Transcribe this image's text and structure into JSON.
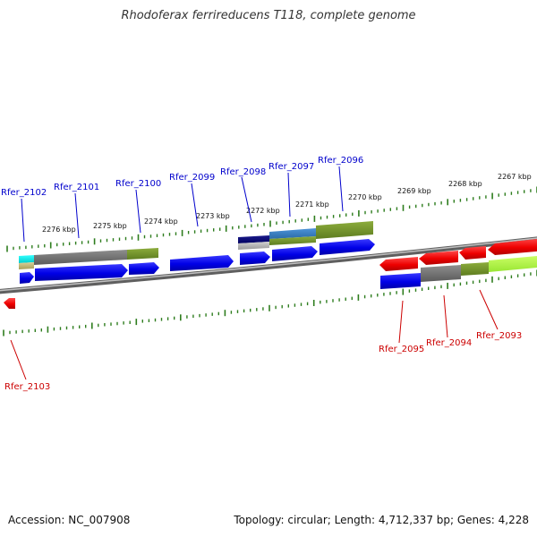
{
  "title": "Rhodoferax ferrireducens T118, complete genome",
  "footer": {
    "accession": "Accession: NC_007908",
    "topology": "Topology: circular; Length: 4,712,337 bp; Genes: 4,228"
  },
  "colors": {
    "forward_label": "#0000cc",
    "reverse_label": "#cc0000",
    "tick": "#2e7d1e",
    "backbone": "#8c8c8c"
  },
  "scale_labels": [
    "2267 kbp",
    "2268 kbp",
    "2269 kbp",
    "2270 kbp",
    "2271 kbp",
    "2272 kbp",
    "2273 kbp",
    "2274 kbp",
    "2275 kbp",
    "2276 kbp"
  ],
  "forward_genes": [
    {
      "label": "Rfer_2102"
    },
    {
      "label": "Rfer_2101"
    },
    {
      "label": "Rfer_2100"
    },
    {
      "label": "Rfer_2099"
    },
    {
      "label": "Rfer_2098"
    },
    {
      "label": "Rfer_2097"
    },
    {
      "label": "Rfer_2096"
    }
  ],
  "reverse_genes": [
    {
      "label": "Rfer_2103"
    },
    {
      "label": "Rfer_2095"
    },
    {
      "label": "Rfer_2094"
    },
    {
      "label": "Rfer_2093"
    }
  ]
}
